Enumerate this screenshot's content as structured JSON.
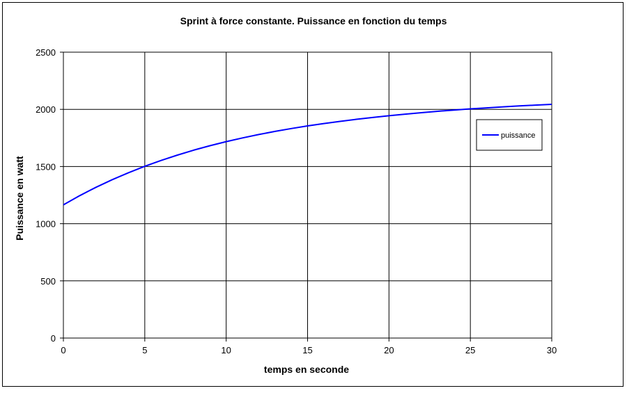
{
  "chart_data": {
    "type": "line",
    "title": "Sprint à force constante. Puissance en fonction du temps",
    "xlabel": "temps en seconde",
    "ylabel": "Puissance en watt",
    "xlim": [
      0,
      30
    ],
    "ylim": [
      0,
      2500
    ],
    "x_ticks": [
      "0",
      "5",
      "10",
      "15",
      "20",
      "25",
      "30"
    ],
    "y_ticks": [
      "0",
      "500",
      "1000",
      "1500",
      "2000",
      "2500"
    ],
    "grid": true,
    "legend_position": "right",
    "series": [
      {
        "name": "puissance",
        "color": "#0000ff",
        "x": [
          0,
          1,
          2,
          3,
          4,
          5,
          6,
          7,
          8,
          9,
          10,
          11,
          12,
          13,
          14,
          15,
          16,
          17,
          18,
          19,
          20,
          21,
          22,
          23,
          24,
          25,
          26,
          27,
          28,
          29,
          30
        ],
        "y": [
          1165,
          1245,
          1318,
          1385,
          1446,
          1502,
          1553,
          1600,
          1643,
          1682,
          1718,
          1750,
          1780,
          1807,
          1832,
          1855,
          1876,
          1895,
          1913,
          1929,
          1944,
          1958,
          1971,
          1983,
          1994,
          2004,
          2013,
          2022,
          2030,
          2037,
          2044
        ]
      }
    ],
    "colors": {
      "frame": "#000000",
      "grid": "#000000",
      "plot_background": "#ffffff",
      "line": "#0000ff"
    }
  }
}
